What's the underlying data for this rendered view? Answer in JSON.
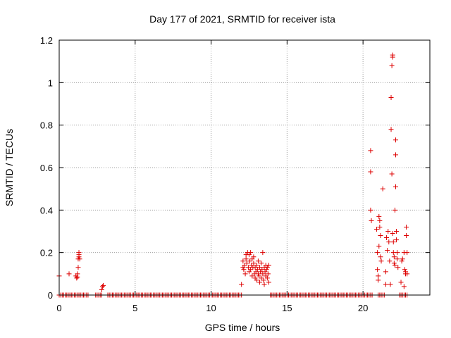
{
  "chart_data": {
    "type": "scatter",
    "title": "Day 177 of 2021, SRMTID for receiver ista",
    "xlabel": "GPS time / hours",
    "ylabel": "SRMTID / TECUs",
    "xlim": [
      0,
      24.4
    ],
    "ylim": [
      0,
      1.2
    ],
    "xticks": [
      0,
      5,
      10,
      15,
      20
    ],
    "xtick_labels": [
      "0",
      "5",
      "10",
      "15",
      "20"
    ],
    "yticks": [
      0,
      0.2,
      0.4,
      0.6,
      0.8,
      1,
      1.2
    ],
    "ytick_labels": [
      "0",
      "0.2",
      "0.4",
      "0.6",
      "0.8",
      "1",
      "1.2"
    ],
    "grid": true,
    "marker": "+",
    "color": "#dd0000",
    "series": [
      {
        "name": "SRMTID",
        "points": [
          [
            0.0,
            0.09
          ],
          [
            0.65,
            0.1
          ],
          [
            1.1,
            0.09
          ],
          [
            1.15,
            0.08
          ],
          [
            1.2,
            0.1
          ],
          [
            1.2,
            0.085
          ],
          [
            1.25,
            0.13
          ],
          [
            1.25,
            0.17
          ],
          [
            1.3,
            0.18
          ],
          [
            1.3,
            0.19
          ],
          [
            1.3,
            0.2
          ],
          [
            1.35,
            0.17
          ],
          [
            2.8,
            0.025
          ],
          [
            2.85,
            0.04
          ],
          [
            2.9,
            0.045
          ],
          [
            12.0,
            0.05
          ],
          [
            12.1,
            0.13
          ],
          [
            12.1,
            0.16
          ],
          [
            12.15,
            0.12
          ],
          [
            12.2,
            0.14
          ],
          [
            12.25,
            0.1
          ],
          [
            12.3,
            0.17
          ],
          [
            12.3,
            0.19
          ],
          [
            12.35,
            0.15
          ],
          [
            12.4,
            0.2
          ],
          [
            12.45,
            0.13
          ],
          [
            12.5,
            0.11
          ],
          [
            12.5,
            0.19
          ],
          [
            12.55,
            0.16
          ],
          [
            12.6,
            0.12
          ],
          [
            12.6,
            0.2
          ],
          [
            12.65,
            0.14
          ],
          [
            12.7,
            0.09
          ],
          [
            12.7,
            0.17
          ],
          [
            12.75,
            0.13
          ],
          [
            12.8,
            0.15
          ],
          [
            12.8,
            0.18
          ],
          [
            12.85,
            0.1
          ],
          [
            12.9,
            0.08
          ],
          [
            12.9,
            0.13
          ],
          [
            12.95,
            0.11
          ],
          [
            13.0,
            0.07
          ],
          [
            13.0,
            0.14
          ],
          [
            13.05,
            0.12
          ],
          [
            13.1,
            0.1
          ],
          [
            13.1,
            0.16
          ],
          [
            13.15,
            0.09
          ],
          [
            13.2,
            0.13
          ],
          [
            13.2,
            0.06
          ],
          [
            13.25,
            0.11
          ],
          [
            13.3,
            0.15
          ],
          [
            13.3,
            0.08
          ],
          [
            13.35,
            0.12
          ],
          [
            13.4,
            0.2
          ],
          [
            13.4,
            0.1
          ],
          [
            13.45,
            0.07
          ],
          [
            13.5,
            0.13
          ],
          [
            13.5,
            0.05
          ],
          [
            13.55,
            0.11
          ],
          [
            13.6,
            0.14
          ],
          [
            13.6,
            0.09
          ],
          [
            13.65,
            0.12
          ],
          [
            13.7,
            0.08
          ],
          [
            13.7,
            0.13
          ],
          [
            13.75,
            0.1
          ],
          [
            13.8,
            0.14
          ],
          [
            13.8,
            0.06
          ],
          [
            20.5,
            0.68
          ],
          [
            20.5,
            0.58
          ],
          [
            20.5,
            0.4
          ],
          [
            20.55,
            0.35
          ],
          [
            20.9,
            0.31
          ],
          [
            20.95,
            0.2
          ],
          [
            20.95,
            0.12
          ],
          [
            21.0,
            0.09
          ],
          [
            21.0,
            0.07
          ],
          [
            21.05,
            0.23
          ],
          [
            21.05,
            0.37
          ],
          [
            21.1,
            0.35
          ],
          [
            21.1,
            0.32
          ],
          [
            21.15,
            0.28
          ],
          [
            21.15,
            0.18
          ],
          [
            21.2,
            0.16
          ],
          [
            21.3,
            0.5
          ],
          [
            21.5,
            0.05
          ],
          [
            21.5,
            0.11
          ],
          [
            21.55,
            0.27
          ],
          [
            21.6,
            0.21
          ],
          [
            21.65,
            0.3
          ],
          [
            21.7,
            0.25
          ],
          [
            21.75,
            0.16
          ],
          [
            21.8,
            0.05
          ],
          [
            21.85,
            0.93
          ],
          [
            21.85,
            0.78
          ],
          [
            21.9,
            1.08
          ],
          [
            21.9,
            0.57
          ],
          [
            21.95,
            1.13
          ],
          [
            21.95,
            1.12
          ],
          [
            21.95,
            0.29
          ],
          [
            22.0,
            0.25
          ],
          [
            22.0,
            0.2
          ],
          [
            22.05,
            0.18
          ],
          [
            22.05,
            0.15
          ],
          [
            22.1,
            0.4
          ],
          [
            22.1,
            0.14
          ],
          [
            22.15,
            0.73
          ],
          [
            22.15,
            0.66
          ],
          [
            22.15,
            0.51
          ],
          [
            22.2,
            0.3
          ],
          [
            22.2,
            0.26
          ],
          [
            22.25,
            0.2
          ],
          [
            22.25,
            0.17
          ],
          [
            22.3,
            0.13
          ],
          [
            22.5,
            0.06
          ],
          [
            22.55,
            0.16
          ],
          [
            22.6,
            0.17
          ],
          [
            22.7,
            0.2
          ],
          [
            22.7,
            0.04
          ],
          [
            22.75,
            0.12
          ],
          [
            22.8,
            0.1
          ],
          [
            22.8,
            0.11
          ],
          [
            22.85,
            0.32
          ],
          [
            22.85,
            0.28
          ],
          [
            22.9,
            0.2
          ],
          [
            22.9,
            0.1
          ]
        ],
        "zero_runs": [
          [
            0.0,
            1.95
          ],
          [
            2.4,
            2.8
          ],
          [
            3.2,
            12.0
          ],
          [
            13.9,
            20.6
          ],
          [
            21.0,
            21.4
          ],
          [
            22.4,
            22.9
          ]
        ]
      }
    ]
  }
}
